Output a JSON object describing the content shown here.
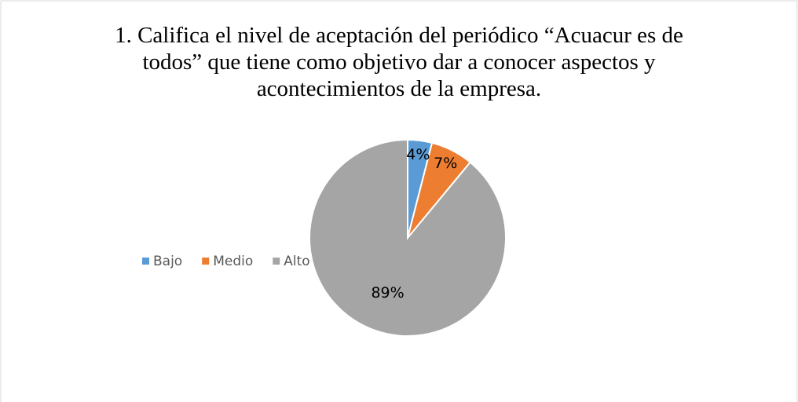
{
  "chart_data": {
    "type": "pie",
    "title": "1. Califica el nivel de aceptación del periódico “Acuacur es de todos” que tiene como objetivo dar a conocer aspectos y acontecimientos de la empresa.",
    "categories": [
      "Bajo",
      "Medio",
      "Alto"
    ],
    "values": [
      4,
      7,
      89
    ],
    "value_labels": [
      "4%",
      "7%",
      "89%"
    ],
    "colors": [
      "#5b9bd5",
      "#ed7d31",
      "#a5a5a5"
    ],
    "legend": "left"
  }
}
